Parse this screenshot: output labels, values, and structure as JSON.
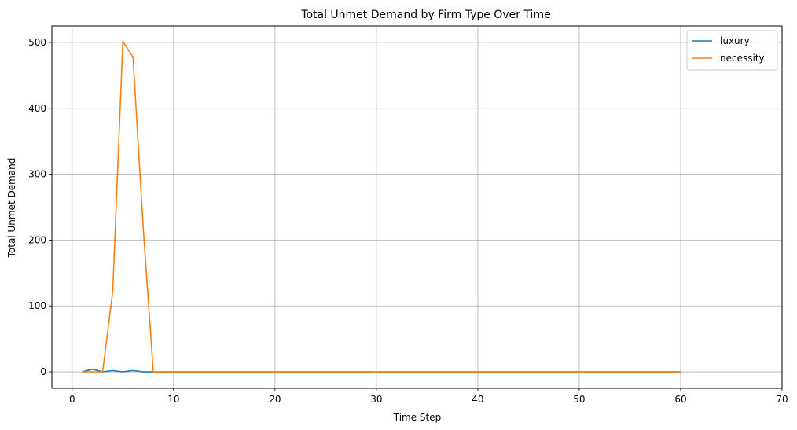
{
  "chart_data": {
    "type": "line",
    "title": "Total Unmet Demand by Firm Type Over Time",
    "xlabel": "Time Step",
    "ylabel": "Total Unmet Demand",
    "xlim": [
      -2,
      70
    ],
    "ylim": [
      -25,
      525
    ],
    "xticks": [
      0,
      10,
      20,
      30,
      40,
      50,
      60,
      70
    ],
    "yticks": [
      0,
      100,
      200,
      300,
      400,
      500
    ],
    "grid": true,
    "legend_position": "top-right",
    "series": [
      {
        "name": "luxury",
        "color": "#1f77b4",
        "x": [
          1,
          2,
          3,
          4,
          5,
          6,
          7,
          8,
          9,
          60
        ],
        "y": [
          0,
          4,
          0,
          2,
          0,
          2,
          0,
          0,
          0,
          0
        ]
      },
      {
        "name": "necessity",
        "color": "#ff7f0e",
        "x": [
          1,
          2,
          3,
          4,
          5,
          6,
          7,
          8,
          9,
          60
        ],
        "y": [
          0,
          0,
          0,
          122,
          501,
          478,
          220,
          0,
          0,
          0
        ]
      }
    ]
  }
}
